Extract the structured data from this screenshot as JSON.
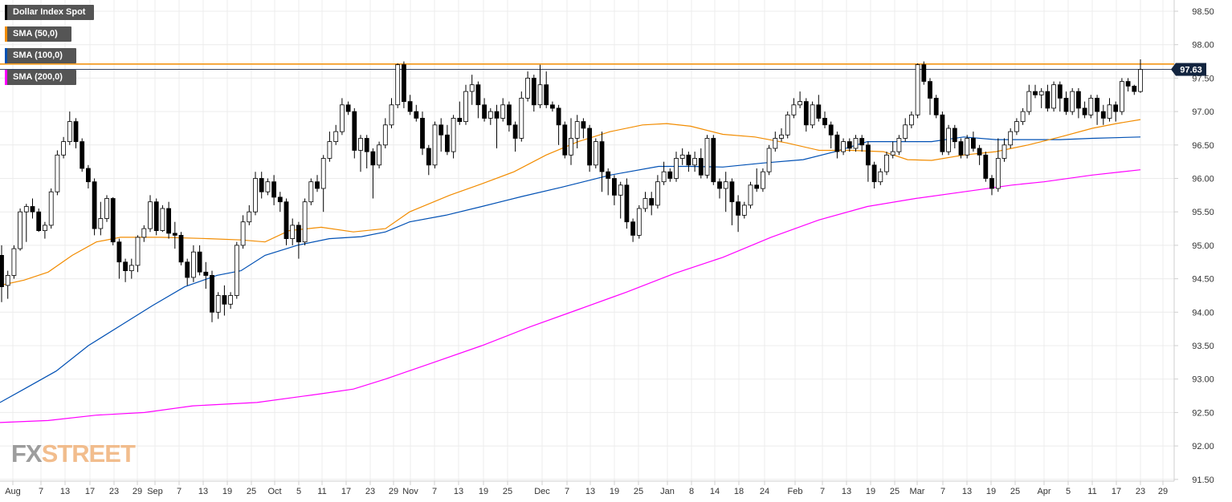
{
  "legend": {
    "items": [
      {
        "label": "Dollar Index Spot",
        "color": "#000000"
      },
      {
        "label": "SMA (50,0)",
        "color": "#f28c00"
      },
      {
        "label": "SMA (100,0)",
        "color": "#0050b4"
      },
      {
        "label": "SMA (200,0)",
        "color": "#ff00ff"
      }
    ]
  },
  "logo": {
    "fx": "FX",
    "street": "STREET"
  },
  "chart_data": {
    "type": "candlestick",
    "y_ticks": [
      "98.50",
      "98.00",
      "97.50",
      "97.00",
      "96.50",
      "96.00",
      "95.50",
      "95.00",
      "94.50",
      "94.00",
      "93.50",
      "93.00",
      "92.50",
      "92.00",
      "91.50"
    ],
    "ylim": [
      91.5,
      98.7
    ],
    "x_ticks": [
      "Aug",
      "7",
      "13",
      "17",
      "23",
      "29",
      "Sep",
      "7",
      "13",
      "19",
      "25",
      "Oct",
      "5",
      "11",
      "17",
      "23",
      "29",
      "Nov",
      "7",
      "13",
      "19",
      "25",
      "Dec",
      "7",
      "13",
      "19",
      "25",
      "Jan",
      "8",
      "14",
      "18",
      "24",
      "Feb",
      "7",
      "13",
      "19",
      "25",
      "Mar",
      "7",
      "13",
      "19",
      "25",
      "Apr",
      "5",
      "11",
      "17",
      "23",
      "29"
    ],
    "last_price": "97.63",
    "last_value": 97.63,
    "resistance": 97.71,
    "grid": true,
    "sma_50": [
      [
        0,
        94.4
      ],
      [
        30,
        94.48
      ],
      [
        60,
        94.6
      ],
      [
        90,
        94.85
      ],
      [
        120,
        95.05
      ],
      [
        150,
        95.12
      ],
      [
        200,
        95.12
      ],
      [
        260,
        95.1
      ],
      [
        300,
        95.08
      ],
      [
        330,
        95.05
      ],
      [
        360,
        95.22
      ],
      [
        400,
        95.27
      ],
      [
        440,
        95.2
      ],
      [
        480,
        95.25
      ],
      [
        510,
        95.5
      ],
      [
        560,
        95.75
      ],
      [
        600,
        95.92
      ],
      [
        640,
        96.1
      ],
      [
        680,
        96.35
      ],
      [
        720,
        96.55
      ],
      [
        760,
        96.7
      ],
      [
        800,
        96.8
      ],
      [
        830,
        96.82
      ],
      [
        860,
        96.78
      ],
      [
        900,
        96.66
      ],
      [
        940,
        96.62
      ],
      [
        980,
        96.53
      ],
      [
        1020,
        96.42
      ],
      [
        1060,
        96.42
      ],
      [
        1100,
        96.4
      ],
      [
        1130,
        96.28
      ],
      [
        1160,
        96.27
      ],
      [
        1200,
        96.35
      ],
      [
        1240,
        96.4
      ],
      [
        1280,
        96.5
      ],
      [
        1320,
        96.62
      ],
      [
        1360,
        96.75
      ],
      [
        1390,
        96.82
      ],
      [
        1420,
        96.88
      ]
    ],
    "sma_100": [
      [
        0,
        92.65
      ],
      [
        30,
        92.85
      ],
      [
        70,
        93.12
      ],
      [
        110,
        93.5
      ],
      [
        150,
        93.8
      ],
      [
        190,
        94.1
      ],
      [
        230,
        94.38
      ],
      [
        270,
        94.55
      ],
      [
        300,
        94.62
      ],
      [
        330,
        94.85
      ],
      [
        370,
        95.0
      ],
      [
        410,
        95.1
      ],
      [
        450,
        95.13
      ],
      [
        480,
        95.2
      ],
      [
        510,
        95.35
      ],
      [
        555,
        95.45
      ],
      [
        600,
        95.58
      ],
      [
        650,
        95.73
      ],
      [
        700,
        95.87
      ],
      [
        760,
        96.05
      ],
      [
        820,
        96.18
      ],
      [
        860,
        96.18
      ],
      [
        900,
        96.17
      ],
      [
        950,
        96.23
      ],
      [
        1000,
        96.28
      ],
      [
        1040,
        96.4
      ],
      [
        1080,
        96.55
      ],
      [
        1120,
        96.55
      ],
      [
        1160,
        96.55
      ],
      [
        1200,
        96.62
      ],
      [
        1240,
        96.58
      ],
      [
        1280,
        96.58
      ],
      [
        1320,
        96.58
      ],
      [
        1360,
        96.6
      ],
      [
        1420,
        96.62
      ]
    ],
    "sma_200": [
      [
        0,
        92.35
      ],
      [
        60,
        92.38
      ],
      [
        120,
        92.46
      ],
      [
        180,
        92.5
      ],
      [
        240,
        92.6
      ],
      [
        320,
        92.65
      ],
      [
        400,
        92.78
      ],
      [
        440,
        92.85
      ],
      [
        480,
        93.0
      ],
      [
        540,
        93.25
      ],
      [
        600,
        93.5
      ],
      [
        660,
        93.78
      ],
      [
        720,
        94.04
      ],
      [
        780,
        94.3
      ],
      [
        840,
        94.58
      ],
      [
        900,
        94.82
      ],
      [
        960,
        95.12
      ],
      [
        1020,
        95.38
      ],
      [
        1080,
        95.58
      ],
      [
        1140,
        95.7
      ],
      [
        1200,
        95.8
      ],
      [
        1260,
        95.9
      ],
      [
        1300,
        95.95
      ],
      [
        1360,
        96.05
      ],
      [
        1420,
        96.13
      ]
    ],
    "candles": [
      [
        94.85,
        94.38,
        95.0,
        94.15
      ],
      [
        94.4,
        94.55,
        94.62,
        94.2
      ],
      [
        94.55,
        94.95,
        95.0,
        94.5
      ],
      [
        94.95,
        95.5,
        95.55,
        94.92
      ],
      [
        95.5,
        95.58,
        95.62,
        95.05
      ],
      [
        95.58,
        95.5,
        95.7,
        95.4
      ],
      [
        95.5,
        95.22,
        95.55,
        95.2
      ],
      [
        95.22,
        95.3,
        95.35,
        95.1
      ],
      [
        95.3,
        95.8,
        95.85,
        95.25
      ],
      [
        95.8,
        96.35,
        96.42,
        95.75
      ],
      [
        96.35,
        96.55,
        96.62,
        96.3
      ],
      [
        96.55,
        96.85,
        97.0,
        96.5
      ],
      [
        96.85,
        96.55,
        96.9,
        96.45
      ],
      [
        96.55,
        96.15,
        96.6,
        96.1
      ],
      [
        96.15,
        95.95,
        96.2,
        95.85
      ],
      [
        95.95,
        95.25,
        96.0,
        95.15
      ],
      [
        95.25,
        95.4,
        95.65,
        95.15
      ],
      [
        95.4,
        95.7,
        95.75,
        95.35
      ],
      [
        95.7,
        95.05,
        95.72,
        95.0
      ],
      [
        95.05,
        94.75,
        95.1,
        94.5
      ],
      [
        94.75,
        94.62,
        94.8,
        94.45
      ],
      [
        94.62,
        94.7,
        94.8,
        94.5
      ],
      [
        94.7,
        95.12,
        95.15,
        94.6
      ],
      [
        95.12,
        95.25,
        95.3,
        95.05
      ],
      [
        95.25,
        95.65,
        95.75,
        95.2
      ],
      [
        95.65,
        95.22,
        95.7,
        95.15
      ],
      [
        95.22,
        95.55,
        95.6,
        95.2
      ],
      [
        95.55,
        95.18,
        95.65,
        95.1
      ],
      [
        95.18,
        95.15,
        95.35,
        94.95
      ],
      [
        95.15,
        94.75,
        95.2,
        94.7
      ],
      [
        94.75,
        94.52,
        94.8,
        94.4
      ],
      [
        94.52,
        94.9,
        95.0,
        94.45
      ],
      [
        94.9,
        94.6,
        95.0,
        94.55
      ],
      [
        94.6,
        94.55,
        94.75,
        94.35
      ],
      [
        94.55,
        94.0,
        94.62,
        93.85
      ],
      [
        94.0,
        94.25,
        94.3,
        93.9
      ],
      [
        94.25,
        94.12,
        94.4,
        93.95
      ],
      [
        94.12,
        94.25,
        94.3,
        94.05
      ],
      [
        94.25,
        95.0,
        95.05,
        94.2
      ],
      [
        95.0,
        95.35,
        95.45,
        94.95
      ],
      [
        95.35,
        95.5,
        95.6,
        95.3
      ],
      [
        95.5,
        96.0,
        96.1,
        95.45
      ],
      [
        96.0,
        95.8,
        96.1,
        95.7
      ],
      [
        95.8,
        95.95,
        96.0,
        95.75
      ],
      [
        95.95,
        95.72,
        96.05,
        95.6
      ],
      [
        95.72,
        95.65,
        95.8,
        95.5
      ],
      [
        95.65,
        95.1,
        95.7,
        95.0
      ],
      [
        95.1,
        95.3,
        95.4,
        95.0
      ],
      [
        95.3,
        95.05,
        95.35,
        94.8
      ],
      [
        95.05,
        95.65,
        95.7,
        95.0
      ],
      [
        95.65,
        95.95,
        96.0,
        95.6
      ],
      [
        95.95,
        95.85,
        96.05,
        95.8
      ],
      [
        95.85,
        96.3,
        96.35,
        95.5
      ],
      [
        96.3,
        96.55,
        96.7,
        96.25
      ],
      [
        96.55,
        96.7,
        96.8,
        96.5
      ],
      [
        96.7,
        97.1,
        97.2,
        96.65
      ],
      [
        97.1,
        97.0,
        97.15,
        96.95
      ],
      [
        97.0,
        96.42,
        97.05,
        96.3
      ],
      [
        96.42,
        96.6,
        96.65,
        96.1
      ],
      [
        96.6,
        96.4,
        96.65,
        96.15
      ],
      [
        96.4,
        96.2,
        96.45,
        95.7
      ],
      [
        96.2,
        96.5,
        96.55,
        96.15
      ],
      [
        96.5,
        96.8,
        96.9,
        96.45
      ],
      [
        96.8,
        97.1,
        97.2,
        96.75
      ],
      [
        97.1,
        97.7,
        97.72,
        97.05
      ],
      [
        97.7,
        97.15,
        97.75,
        97.05
      ],
      [
        97.15,
        97.0,
        97.25,
        96.95
      ],
      [
        97.0,
        96.9,
        97.1,
        96.85
      ],
      [
        96.9,
        96.45,
        97.0,
        96.35
      ],
      [
        96.45,
        96.2,
        96.5,
        96.05
      ],
      [
        96.2,
        96.8,
        96.85,
        96.15
      ],
      [
        96.8,
        96.65,
        96.9,
        96.4
      ],
      [
        96.65,
        96.4,
        96.8,
        96.35
      ],
      [
        96.4,
        96.9,
        96.95,
        96.3
      ],
      [
        96.9,
        96.85,
        97.15,
        96.8
      ],
      [
        96.85,
        97.3,
        97.4,
        96.8
      ],
      [
        97.3,
        97.4,
        97.55,
        97.1
      ],
      [
        97.4,
        97.1,
        97.45,
        96.9
      ],
      [
        97.1,
        96.9,
        97.2,
        96.85
      ],
      [
        96.9,
        97.0,
        97.05,
        96.8
      ],
      [
        97.0,
        96.9,
        97.1,
        96.45
      ],
      [
        96.9,
        97.1,
        97.2,
        96.85
      ],
      [
        97.1,
        96.8,
        97.15,
        96.7
      ],
      [
        96.8,
        96.6,
        96.85,
        96.4
      ],
      [
        96.6,
        97.2,
        97.3,
        96.55
      ],
      [
        97.2,
        97.5,
        97.6,
        97.15
      ],
      [
        97.5,
        97.1,
        97.55,
        97.0
      ],
      [
        97.1,
        97.4,
        97.7,
        97.05
      ],
      [
        97.4,
        97.1,
        97.6,
        97.05
      ],
      [
        97.1,
        97.05,
        97.15,
        97.0
      ],
      [
        97.05,
        96.8,
        97.1,
        96.5
      ],
      [
        96.8,
        96.35,
        96.85,
        96.3
      ],
      [
        96.35,
        96.6,
        96.9,
        96.2
      ],
      [
        96.6,
        96.85,
        96.95,
        96.45
      ],
      [
        96.85,
        96.75,
        96.9,
        96.6
      ],
      [
        96.75,
        96.2,
        96.8,
        96.1
      ],
      [
        96.2,
        96.55,
        96.6,
        96.15
      ],
      [
        96.55,
        96.1,
        96.7,
        95.8
      ],
      [
        96.1,
        96.0,
        96.15,
        95.75
      ],
      [
        96.0,
        95.75,
        96.05,
        95.6
      ],
      [
        95.75,
        95.9,
        95.95,
        95.4
      ],
      [
        95.9,
        95.35,
        96.0,
        95.25
      ],
      [
        95.35,
        95.15,
        95.4,
        95.05
      ],
      [
        95.15,
        95.55,
        95.6,
        95.1
      ],
      [
        95.55,
        95.7,
        95.8,
        95.5
      ],
      [
        95.7,
        95.6,
        95.8,
        95.45
      ],
      [
        95.6,
        95.95,
        96.05,
        95.55
      ],
      [
        95.95,
        96.1,
        96.25,
        95.9
      ],
      [
        96.1,
        96.0,
        96.15,
        95.95
      ],
      [
        96.0,
        96.3,
        96.4,
        95.95
      ],
      [
        96.3,
        96.35,
        96.45,
        96.2
      ],
      [
        96.35,
        96.2,
        96.4,
        96.1
      ],
      [
        96.2,
        96.3,
        96.4,
        96.1
      ],
      [
        96.3,
        96.05,
        96.45,
        96.0
      ],
      [
        96.05,
        96.6,
        96.65,
        96.0
      ],
      [
        96.6,
        95.95,
        96.65,
        95.9
      ],
      [
        95.95,
        95.85,
        96.0,
        95.7
      ],
      [
        95.85,
        95.95,
        96.1,
        95.5
      ],
      [
        95.95,
        95.65,
        96.0,
        95.3
      ],
      [
        95.65,
        95.45,
        95.75,
        95.2
      ],
      [
        95.45,
        95.6,
        95.65,
        95.4
      ],
      [
        95.6,
        95.9,
        95.95,
        95.55
      ],
      [
        95.9,
        95.85,
        96.15,
        95.8
      ],
      [
        95.85,
        96.1,
        96.15,
        95.8
      ],
      [
        96.1,
        96.45,
        96.5,
        96.05
      ],
      [
        96.45,
        96.6,
        96.7,
        96.4
      ],
      [
        96.6,
        96.65,
        96.75,
        96.55
      ],
      [
        96.65,
        96.95,
        97.0,
        96.6
      ],
      [
        96.95,
        97.1,
        97.2,
        96.9
      ],
      [
        97.1,
        97.15,
        97.3,
        97.05
      ],
      [
        97.15,
        96.8,
        97.2,
        96.7
      ],
      [
        96.8,
        97.1,
        97.15,
        96.75
      ],
      [
        97.1,
        96.9,
        97.25,
        96.85
      ],
      [
        96.9,
        96.8,
        97.0,
        96.75
      ],
      [
        96.8,
        96.65,
        96.85,
        96.45
      ],
      [
        96.65,
        96.4,
        96.7,
        96.3
      ],
      [
        96.4,
        96.55,
        96.6,
        96.35
      ],
      [
        96.55,
        96.45,
        96.6,
        96.4
      ],
      [
        96.45,
        96.6,
        96.65,
        96.4
      ],
      [
        96.6,
        96.5,
        96.65,
        96.4
      ],
      [
        96.5,
        96.2,
        96.55,
        95.95
      ],
      [
        96.2,
        95.95,
        96.25,
        95.85
      ],
      [
        95.95,
        96.1,
        96.15,
        95.9
      ],
      [
        96.1,
        96.35,
        96.4,
        96.05
      ],
      [
        96.35,
        96.4,
        96.55,
        96.3
      ],
      [
        96.4,
        96.6,
        96.65,
        96.35
      ],
      [
        96.6,
        96.8,
        96.9,
        96.55
      ],
      [
        96.8,
        96.95,
        97.0,
        96.75
      ],
      [
        96.95,
        97.7,
        97.72,
        96.9
      ],
      [
        97.7,
        97.45,
        97.75,
        97.4
      ],
      [
        97.45,
        97.2,
        97.5,
        96.95
      ],
      [
        97.2,
        96.95,
        97.25,
        96.9
      ],
      [
        96.95,
        96.4,
        97.0,
        96.35
      ],
      [
        96.4,
        96.75,
        96.8,
        96.35
      ],
      [
        96.75,
        96.55,
        96.8,
        96.45
      ],
      [
        96.55,
        96.35,
        96.6,
        96.3
      ],
      [
        96.35,
        96.6,
        96.65,
        96.3
      ],
      [
        96.6,
        96.45,
        96.7,
        96.4
      ],
      [
        96.45,
        96.35,
        96.5,
        96.2
      ],
      [
        96.35,
        96.0,
        96.4,
        95.95
      ],
      [
        96.0,
        95.85,
        96.05,
        95.75
      ],
      [
        95.85,
        96.3,
        96.6,
        95.8
      ],
      [
        96.3,
        96.5,
        96.6,
        96.25
      ],
      [
        96.5,
        96.7,
        96.75,
        96.45
      ],
      [
        96.7,
        96.85,
        96.9,
        96.65
      ],
      [
        96.85,
        97.0,
        97.05,
        96.8
      ],
      [
        97.0,
        97.3,
        97.4,
        96.95
      ],
      [
        97.3,
        97.25,
        97.4,
        97.2
      ],
      [
        97.25,
        97.3,
        97.35,
        97.05
      ],
      [
        97.3,
        97.05,
        97.4,
        97.0
      ],
      [
        97.05,
        97.4,
        97.45,
        97.0
      ],
      [
        97.4,
        97.2,
        97.45,
        97.0
      ],
      [
        97.2,
        97.0,
        97.3,
        96.95
      ],
      [
        97.0,
        97.3,
        97.35,
        96.95
      ],
      [
        97.3,
        97.05,
        97.35,
        96.9
      ],
      [
        97.05,
        96.95,
        97.15,
        96.9
      ],
      [
        96.95,
        97.2,
        97.25,
        96.9
      ],
      [
        97.2,
        97.0,
        97.25,
        96.8
      ],
      [
        97.0,
        96.9,
        97.1,
        96.8
      ],
      [
        96.9,
        97.1,
        97.2,
        96.85
      ],
      [
        97.1,
        97.0,
        97.15,
        96.85
      ],
      [
        97.0,
        97.45,
        97.5,
        96.95
      ],
      [
        97.45,
        97.38,
        97.5,
        97.3
      ],
      [
        97.38,
        97.3,
        97.4,
        97.25
      ],
      [
        97.3,
        97.63,
        97.78,
        97.28
      ]
    ]
  }
}
